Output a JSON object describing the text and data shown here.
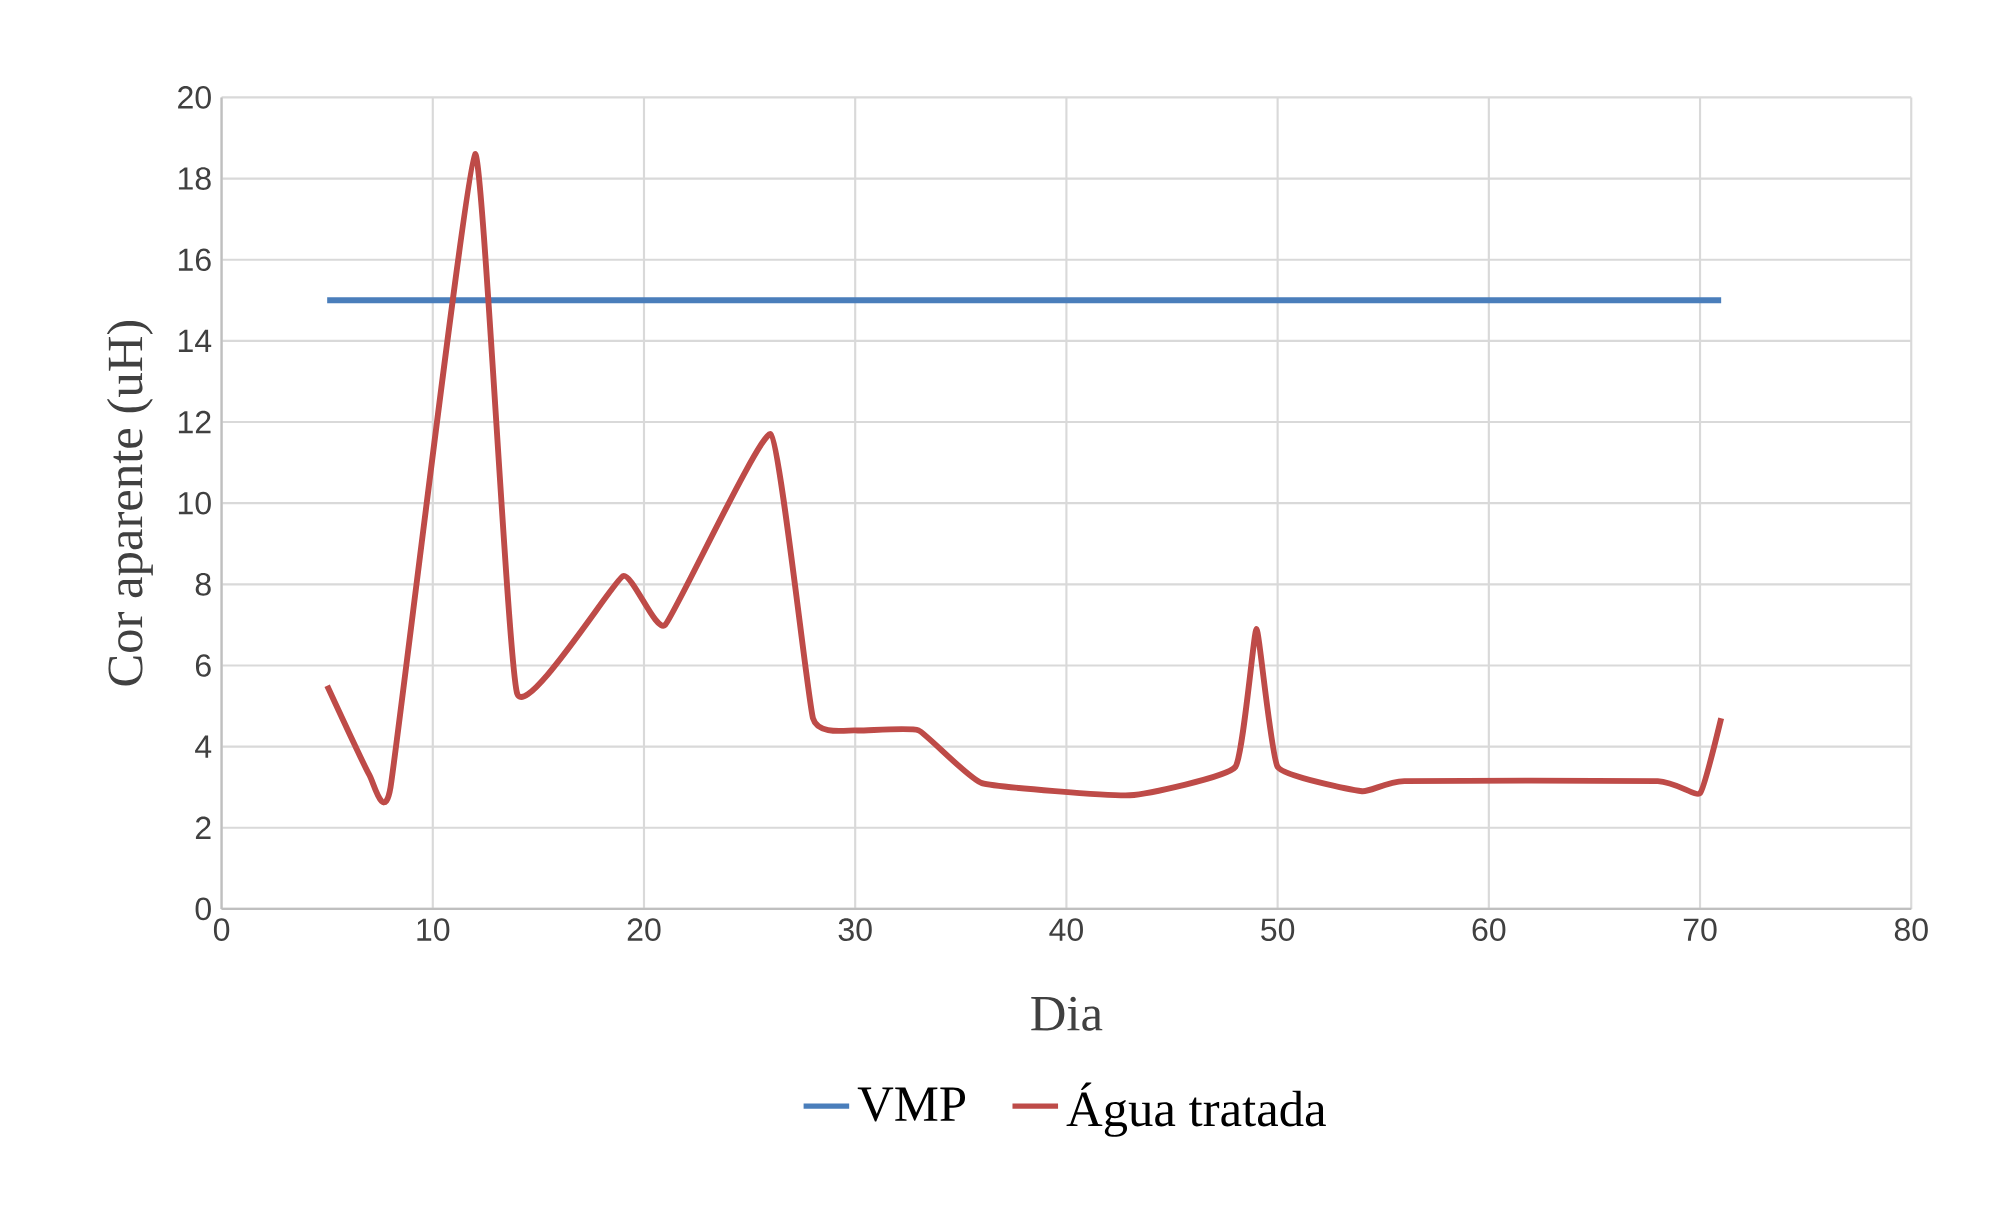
{
  "chart_data": {
    "type": "line",
    "xlabel": "Dia",
    "ylabel": "Cor aparente (uH)",
    "xlim": [
      0,
      80
    ],
    "xticks": [
      0,
      10,
      20,
      30,
      40,
      50,
      60,
      70,
      80
    ],
    "ylim": [
      0,
      20
    ],
    "yticks": [
      0,
      2,
      4,
      6,
      8,
      10,
      12,
      14,
      16,
      18,
      20
    ],
    "grid": true,
    "legend": "bottom",
    "marker": "none",
    "line_style": "solid",
    "series": [
      {
        "name": "VMP",
        "color": "#4a7ebb",
        "x": [
          5,
          71
        ],
        "values": [
          15,
          15
        ]
      },
      {
        "name": "Água tratada",
        "color": "#be4b48",
        "x": [
          5,
          7,
          8,
          12,
          14,
          19,
          21,
          26,
          28,
          30,
          33,
          36,
          43,
          48,
          49,
          50,
          54,
          56,
          68,
          70,
          71
        ],
        "values": [
          5.5,
          3.3,
          3.0,
          18.6,
          5.3,
          8.2,
          7.0,
          11.7,
          4.7,
          4.4,
          4.4,
          3.1,
          2.8,
          3.5,
          6.9,
          3.5,
          2.9,
          3.15,
          3.15,
          2.85,
          4.7
        ]
      }
    ]
  }
}
